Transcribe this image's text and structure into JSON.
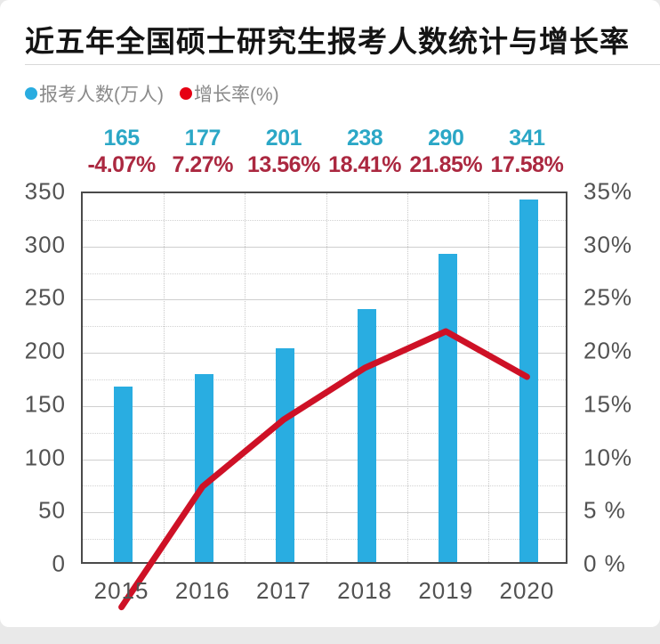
{
  "title": "近五年全国硕士研究生报考人数统计与增长率",
  "legend": [
    {
      "label": "报考人数(万人)",
      "color": "#29ace0"
    },
    {
      "label": "增长率(%)",
      "color": "#e60013"
    }
  ],
  "chart_data": {
    "type": "bar",
    "subtype": "bar+line combo, dual axis",
    "categories": [
      "2015",
      "2016",
      "2017",
      "2018",
      "2019",
      "2020"
    ],
    "series": [
      {
        "name": "报考人数(万人)",
        "type": "bar",
        "axis": "left",
        "values": [
          165,
          177,
          201,
          238,
          290,
          341
        ],
        "labels": [
          "165",
          "177",
          "201",
          "238",
          "290",
          "341"
        ],
        "color": "#29ade1",
        "label_color": "#2ba7c6"
      },
      {
        "name": "增长率(%)",
        "type": "line",
        "axis": "right",
        "values": [
          -4.07,
          7.27,
          13.56,
          18.41,
          21.85,
          17.58
        ],
        "labels": [
          "-4.07%",
          "7.27%",
          "13.56%",
          "18.41%",
          "21.85%",
          "17.58%"
        ],
        "color": "#ce1126",
        "label_color": "#ab2840"
      }
    ],
    "left_axis": {
      "min": 0,
      "max": 350,
      "step": 50,
      "ticks": [
        "350",
        "300",
        "250",
        "200",
        "150",
        "100",
        "50",
        "0"
      ]
    },
    "right_axis": {
      "min": 0,
      "max": 35,
      "step": 5,
      "ticks": [
        "35%",
        "30%",
        "25%",
        "20%",
        "15%",
        "10%",
        "5 %",
        "0 %"
      ]
    },
    "grid": {
      "horizontal_minor_step": 25,
      "vertical": "category boundaries",
      "on": true
    },
    "legend_position": "top-left",
    "notes": "Red growth-rate line dips below 0% axis at 2015 (-4.07%)"
  }
}
